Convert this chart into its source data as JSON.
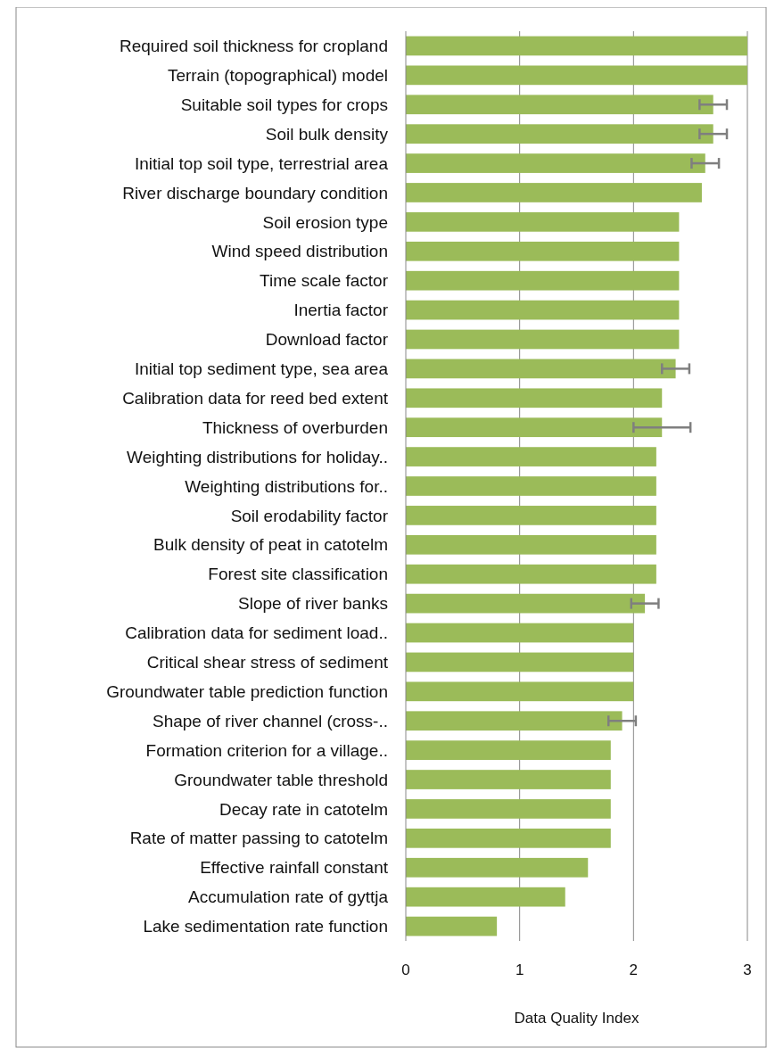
{
  "chart_data": {
    "type": "bar",
    "orientation": "horizontal",
    "xlabel": "Data Quality Index",
    "categories": [
      "Required soil thickness for cropland",
      "Terrain  (topographical) model",
      "Suitable soil types for crops",
      "Soil bulk density",
      "Initial top soil type, terrestrial area",
      "River discharge boundary condition",
      "Soil erosion type",
      "Wind speed distribution",
      "Time scale factor",
      "Inertia  factor",
      "Download factor",
      "Initial top sediment type, sea area",
      "Calibration data for reed bed extent",
      "Thickness  of overburden",
      "Weighting distributions for holiday..",
      "Weighting distributions for..",
      "Soil erodability factor",
      "Bulk density of peat in catotelm",
      "Forest site classification",
      "Slope of river banks",
      "Calibration data for sediment load..",
      "Critical shear stress of sediment",
      "Groundwater table prediction function",
      "Shape of river channel (cross-..",
      "Formation criterion for a village..",
      "Groundwater table threshold",
      "Decay rate in catotelm",
      "Rate of matter passing to catotelm",
      "Effective rainfall constant",
      "Accumulation rate of gyttja",
      "Lake sedimentation rate  function"
    ],
    "values": [
      3,
      3,
      2.7,
      2.7,
      2.63,
      2.6,
      2.4,
      2.4,
      2.4,
      2.4,
      2.4,
      2.37,
      2.25,
      2.25,
      2.2,
      2.2,
      2.2,
      2.2,
      2.2,
      2.1,
      2,
      2,
      2,
      1.9,
      1.8,
      1.8,
      1.8,
      1.8,
      1.6,
      1.4,
      0.8
    ],
    "errors": [
      null,
      null,
      0.12,
      0.12,
      0.12,
      null,
      null,
      null,
      null,
      null,
      null,
      0.12,
      null,
      0.25,
      null,
      null,
      null,
      null,
      null,
      0.12,
      null,
      null,
      null,
      0.12,
      null,
      null,
      null,
      null,
      null,
      null,
      null
    ],
    "color": "#9bbb59",
    "xlim": [
      0,
      3
    ],
    "xticks": [
      0,
      1,
      2,
      3
    ],
    "grid": "x"
  }
}
